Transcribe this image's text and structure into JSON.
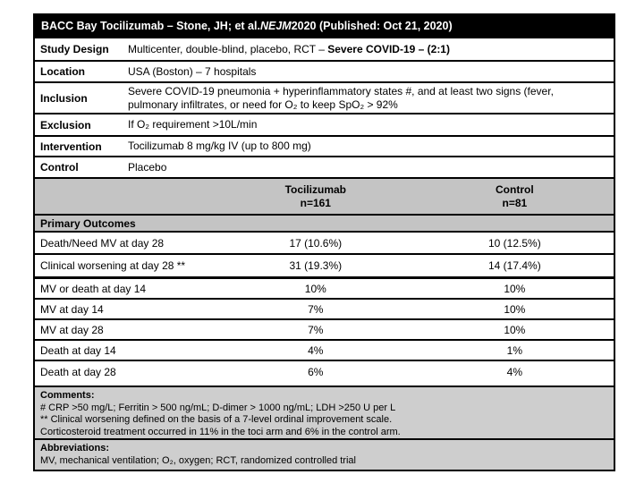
{
  "title": {
    "pre": "BACC Bay Tocilizumab – Stone, JH; et al. ",
    "journal": "NEJM",
    "post": " 2020 (Published: Oct 21, 2020)"
  },
  "study_info": {
    "rows": [
      {
        "label": "Study Design",
        "value": "Multicenter, double-blind, placebo, RCT – ",
        "value_bold": "Severe COVID-19 – (2:1)"
      },
      {
        "label": "Location",
        "value": "USA (Boston) – 7 hospitals"
      },
      {
        "label": "Inclusion",
        "value": "Severe COVID-19 pneumonia + hyperinflammatory states #, and at least two signs (fever, pulmonary infiltrates, or need for O₂ to keep SpO₂ > 92%"
      },
      {
        "label": "Exclusion",
        "value": "If O₂ requirement >10L/min"
      },
      {
        "label": "Intervention",
        "value": "Tocilizumab 8 mg/kg IV (up to 800 mg)"
      },
      {
        "label": "Control",
        "value": "Placebo"
      }
    ]
  },
  "columns": {
    "treatment": {
      "name": "Tocilizumab",
      "n": "n=161"
    },
    "control": {
      "name": "Control",
      "n": "n=81"
    }
  },
  "outcomes": {
    "section_label": "Primary Outcomes",
    "rows": [
      {
        "label": "Death/Need MV at day 28",
        "treatment": "17 (10.6%)",
        "control": "10 (12.5%)"
      },
      {
        "label": "Clinical worsening at day 28 **",
        "treatment": "31 (19.3%)",
        "control": "14 (17.4%)"
      },
      {
        "label": "MV or death at day 14",
        "treatment": "10%",
        "control": "10%"
      },
      {
        "label": "MV at day 14",
        "treatment": "7%",
        "control": "10%"
      },
      {
        "label": "MV at day 28",
        "treatment": "7%",
        "control": "10%"
      },
      {
        "label": "Death at day 14",
        "treatment": "4%",
        "control": "1%"
      },
      {
        "label": "Death at day 28",
        "treatment": "6%",
        "control": "4%"
      }
    ]
  },
  "comments": {
    "heading": "Comments:",
    "lines": [
      "# CRP >50 mg/L; Ferritin > 500 ng/mL; D-dimer > 1000 ng/mL; LDH >250 U per L",
      "** Clinical worsening defined on the basis of a 7-level ordinal improvement scale.",
      "Corticosteroid treatment occurred in 11% in the toci arm and 6% in the control arm."
    ]
  },
  "abbreviations": {
    "heading": "Abbreviations:",
    "line": "MV, mechanical ventilation; O₂, oxygen; RCT, randomized controlled trial"
  },
  "colors": {
    "header_bg": "#000000",
    "header_text": "#ffffff",
    "section_gray": "#c4c4c4",
    "note_gray": "#cecece",
    "border": "#000000"
  }
}
